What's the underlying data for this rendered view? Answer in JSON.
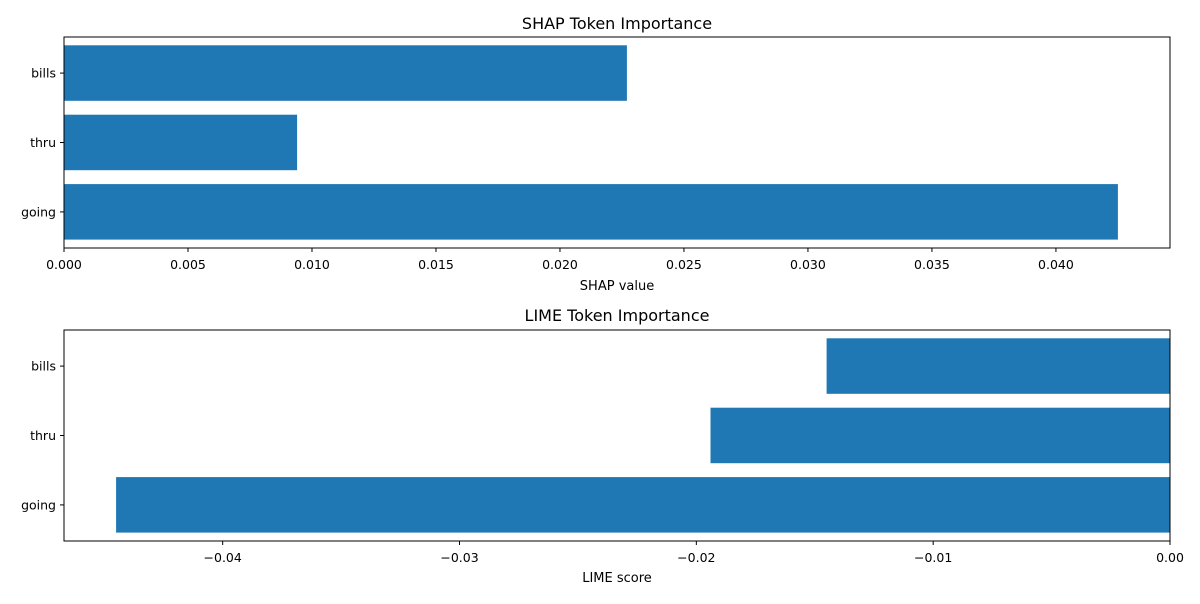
{
  "chart_data": [
    {
      "type": "bar",
      "orientation": "horizontal",
      "title": "SHAP Token Importance",
      "xlabel": "SHAP value",
      "ylabel": "",
      "categories": [
        "bills",
        "thru",
        "going"
      ],
      "values": [
        0.0227,
        0.0094,
        0.0425
      ],
      "xlim": [
        0.0,
        0.0446
      ],
      "xticks": [
        0.0,
        0.005,
        0.01,
        0.015,
        0.02,
        0.025,
        0.03,
        0.035,
        0.04
      ],
      "xtick_labels": [
        "0.000",
        "0.005",
        "0.010",
        "0.015",
        "0.020",
        "0.025",
        "0.030",
        "0.035",
        "0.040"
      ],
      "grid": false,
      "color": "#1f77b4"
    },
    {
      "type": "bar",
      "orientation": "horizontal",
      "title": "LIME Token Importance",
      "xlabel": "LIME score",
      "ylabel": "",
      "categories": [
        "bills",
        "thru",
        "going"
      ],
      "values": [
        -0.0145,
        -0.0194,
        -0.0445
      ],
      "xlim": [
        -0.0467,
        0.0
      ],
      "xticks": [
        -0.04,
        -0.03,
        -0.02,
        -0.01,
        0.0
      ],
      "xtick_labels": [
        "−0.04",
        "−0.03",
        "−0.02",
        "−0.01",
        "0.00"
      ],
      "grid": false,
      "color": "#1f77b4"
    }
  ]
}
